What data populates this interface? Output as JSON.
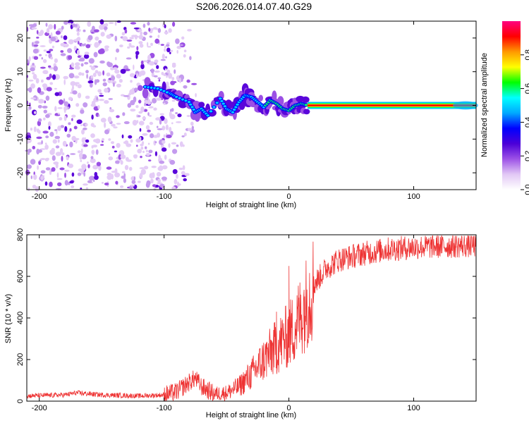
{
  "title": "S206.2026.014.07.40.G29",
  "chart_data": [
    {
      "type": "heatmap",
      "id": "spectrogram",
      "xlabel": "Height of straight line (km)",
      "ylabel": "Frequency (Hz)",
      "xlim": [
        -210,
        150
      ],
      "ylim": [
        -25,
        25
      ],
      "xticks": [
        -200,
        -100,
        0,
        100
      ],
      "yticks": [
        -20,
        -10,
        0,
        10,
        20
      ],
      "colorbar": {
        "label": "Normalized spectral amplitude",
        "range": [
          0,
          1
        ],
        "ticks": [
          "0.0",
          "0.2",
          "0.4",
          "0.6",
          "0.8"
        ],
        "tick_values": [
          0.0,
          0.2,
          0.4,
          0.6,
          0.8
        ],
        "colors": [
          "#ffffff",
          "#e2c8f5",
          "#9d52e6",
          "#4b00d8",
          "#0000ff",
          "#00a8ff",
          "#00ffff",
          "#00ff00",
          "#ffff00",
          "#ff9900",
          "#ff0000",
          "#ff0080"
        ]
      },
      "ridge": [
        {
          "x": -115,
          "freq": 5.5
        },
        {
          "x": -105,
          "freq": 5.0
        },
        {
          "x": -95,
          "freq": 3.5
        },
        {
          "x": -90,
          "freq": 2.5
        },
        {
          "x": -80,
          "freq": 1.0
        },
        {
          "x": -75,
          "freq": -2.0
        },
        {
          "x": -70,
          "freq": -1.0
        },
        {
          "x": -65,
          "freq": -3.0
        },
        {
          "x": -55,
          "freq": 2.0
        },
        {
          "x": -50,
          "freq": -1.0
        },
        {
          "x": -45,
          "freq": -2.0
        },
        {
          "x": -40,
          "freq": 1.0
        },
        {
          "x": -35,
          "freq": 3.0
        },
        {
          "x": -30,
          "freq": 2.5
        },
        {
          "x": -25,
          "freq": 1.0
        },
        {
          "x": -20,
          "freq": -0.5
        },
        {
          "x": -15,
          "freq": 1.5
        },
        {
          "x": -10,
          "freq": 0.5
        },
        {
          "x": -5,
          "freq": -1.0
        },
        {
          "x": 0,
          "freq": -1.5
        },
        {
          "x": 5,
          "freq": 0.0
        },
        {
          "x": 10,
          "freq": 0.5
        },
        {
          "x": 15,
          "freq": 0.0
        }
      ],
      "carrier": {
        "freq": 0.0,
        "x_start": 15,
        "x_end": 150,
        "amplitude": 0.95
      },
      "noise_region": {
        "x_start": -210,
        "x_end": -95,
        "freq_range": [
          -25,
          25
        ]
      }
    },
    {
      "type": "line",
      "id": "snr",
      "xlabel": "Height of straight line (km)",
      "ylabel": "SNR (10 * v/v)",
      "xlim": [
        -210,
        150
      ],
      "ylim": [
        0,
        800
      ],
      "xticks": [
        -200,
        -100,
        0,
        100
      ],
      "yticks": [
        0,
        200,
        400,
        600,
        800
      ],
      "color": "#ee3333",
      "trend": [
        {
          "x": -210,
          "y": 25
        },
        {
          "x": -180,
          "y": 30
        },
        {
          "x": -170,
          "y": 40
        },
        {
          "x": -150,
          "y": 30
        },
        {
          "x": -120,
          "y": 25
        },
        {
          "x": -100,
          "y": 30
        },
        {
          "x": -90,
          "y": 45
        },
        {
          "x": -80,
          "y": 90
        },
        {
          "x": -75,
          "y": 110
        },
        {
          "x": -70,
          "y": 70
        },
        {
          "x": -60,
          "y": 35
        },
        {
          "x": -50,
          "y": 40
        },
        {
          "x": -40,
          "y": 70
        },
        {
          "x": -30,
          "y": 130
        },
        {
          "x": -20,
          "y": 200
        },
        {
          "x": -10,
          "y": 260
        },
        {
          "x": 0,
          "y": 320
        },
        {
          "x": 5,
          "y": 360
        },
        {
          "x": 10,
          "y": 420
        },
        {
          "x": 20,
          "y": 560
        },
        {
          "x": 30,
          "y": 640
        },
        {
          "x": 40,
          "y": 680
        },
        {
          "x": 60,
          "y": 710
        },
        {
          "x": 80,
          "y": 730
        },
        {
          "x": 100,
          "y": 740
        },
        {
          "x": 120,
          "y": 745
        },
        {
          "x": 150,
          "y": 750
        }
      ],
      "spikes": [
        {
          "x": -10,
          "y": 430
        },
        {
          "x": 0,
          "y": 650
        },
        {
          "x": 20,
          "y": 600
        }
      ]
    }
  ]
}
